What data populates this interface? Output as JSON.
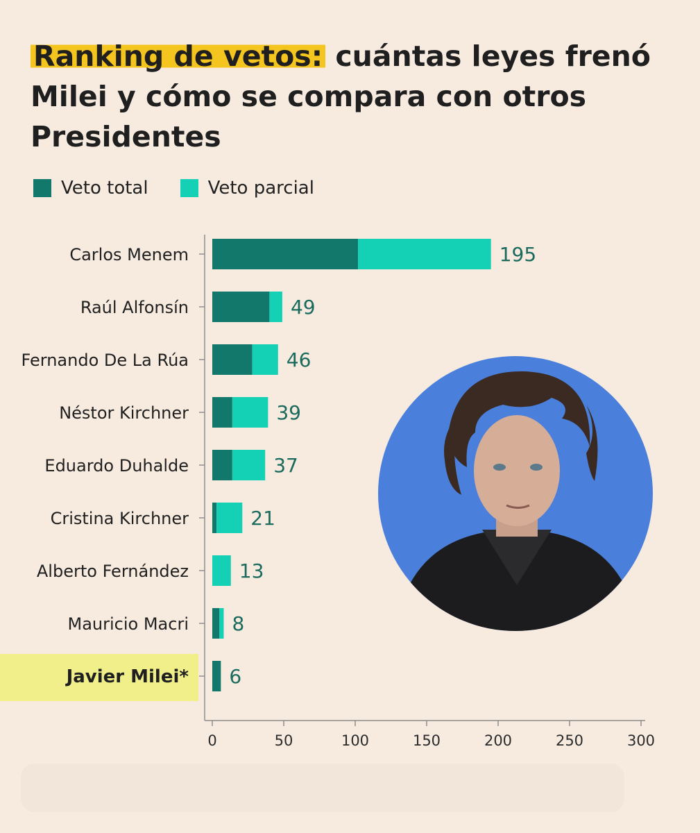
{
  "title": {
    "highlight": "Ranking de vetos:",
    "rest": "cuántas leyes frenó Milei y cómo se compara con otros Presidentes"
  },
  "colors": {
    "total": "#11786b",
    "parcial": "#14d1b5",
    "label": "#1a6b5d",
    "highlight_row": "#f0ef8a"
  },
  "chart_data": {
    "type": "bar",
    "orientation": "horizontal",
    "stacked": true,
    "categories": [
      "Carlos Menem",
      "Raúl Alfonsín",
      "Fernando De La Rúa",
      "Néstor Kirchner",
      "Eduardo Duhalde",
      "Cristina Kirchner",
      "Alberto Fernández",
      "Mauricio Macri",
      "Javier Milei*"
    ],
    "series": [
      {
        "name": "Veto total",
        "values": [
          102,
          40,
          28,
          14,
          14,
          3,
          0,
          5,
          6
        ]
      },
      {
        "name": "Veto parcial",
        "values": [
          93,
          9,
          18,
          25,
          23,
          18,
          13,
          3,
          0
        ]
      }
    ],
    "totals": [
      "195",
      "49",
      "46",
      "39",
      "37",
      "21",
      "13",
      "8",
      "6"
    ],
    "xlim": [
      0,
      300
    ],
    "xticks": [
      "0",
      "50",
      "100",
      "150",
      "200",
      "250",
      "300"
    ],
    "highlighted": "Javier Milei*"
  },
  "photo": {
    "subject": "portrait-of-javier-milei",
    "background": "#4a80dc"
  }
}
